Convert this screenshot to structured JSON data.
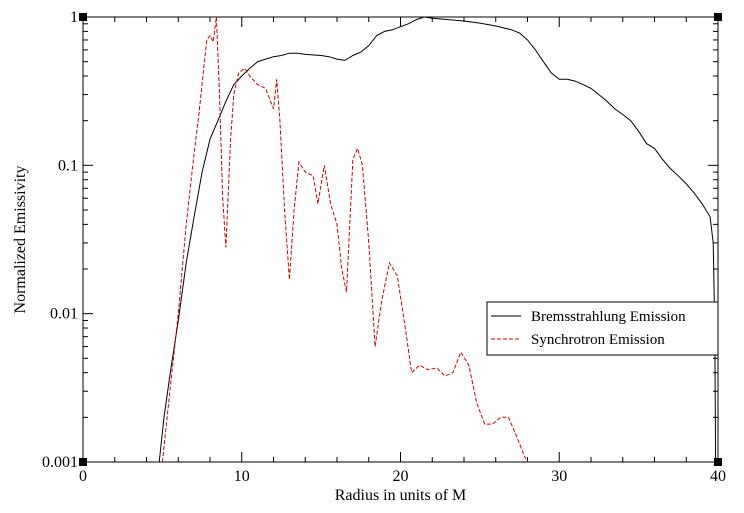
{
  "chart_data": {
    "type": "line",
    "title": "",
    "xlabel": "Radius in units of M",
    "ylabel": "Normalized Emissivity",
    "xlim": [
      0,
      40
    ],
    "ylim": [
      0.001,
      1
    ],
    "yscale": "log",
    "grid": false,
    "legend_placement": "right",
    "x_ticks": [
      {
        "value": 0,
        "label": "0"
      },
      {
        "value": 10,
        "label": "10"
      },
      {
        "value": 20,
        "label": "20"
      },
      {
        "value": 30,
        "label": "30"
      },
      {
        "value": 40,
        "label": "40"
      }
    ],
    "y_ticks": [
      {
        "value": 0.001,
        "label": "0.001"
      },
      {
        "value": 0.01,
        "label": "0.01"
      },
      {
        "value": 0.1,
        "label": "0.1"
      },
      {
        "value": 1,
        "label": "1"
      }
    ],
    "series": [
      {
        "name": "Bremsstrahlung Emission",
        "color": "#000000",
        "dash": "solid",
        "points": [
          [
            4.8,
            0.001
          ],
          [
            5.1,
            0.002
          ],
          [
            5.5,
            0.004
          ],
          [
            6.0,
            0.009
          ],
          [
            6.5,
            0.022
          ],
          [
            7.0,
            0.045
          ],
          [
            7.5,
            0.09
          ],
          [
            8.0,
            0.15
          ],
          [
            8.5,
            0.2
          ],
          [
            9.0,
            0.27
          ],
          [
            9.5,
            0.35
          ],
          [
            10.0,
            0.4
          ],
          [
            10.5,
            0.45
          ],
          [
            11.0,
            0.5
          ],
          [
            11.5,
            0.52
          ],
          [
            12.0,
            0.54
          ],
          [
            12.5,
            0.55
          ],
          [
            13.0,
            0.57
          ],
          [
            13.5,
            0.57
          ],
          [
            14.0,
            0.56
          ],
          [
            15.0,
            0.55
          ],
          [
            15.5,
            0.54
          ],
          [
            16.0,
            0.52
          ],
          [
            16.5,
            0.51
          ],
          [
            17.0,
            0.55
          ],
          [
            17.5,
            0.58
          ],
          [
            18.0,
            0.64
          ],
          [
            18.5,
            0.75
          ],
          [
            19.0,
            0.8
          ],
          [
            19.5,
            0.82
          ],
          [
            20.0,
            0.86
          ],
          [
            20.5,
            0.9
          ],
          [
            21.0,
            0.96
          ],
          [
            21.5,
            1.0
          ],
          [
            22.0,
            0.98
          ],
          [
            23.0,
            0.96
          ],
          [
            24.0,
            0.94
          ],
          [
            25.0,
            0.91
          ],
          [
            26.0,
            0.87
          ],
          [
            27.0,
            0.82
          ],
          [
            27.5,
            0.78
          ],
          [
            28.0,
            0.7
          ],
          [
            28.5,
            0.6
          ],
          [
            29.0,
            0.5
          ],
          [
            29.5,
            0.42
          ],
          [
            30.0,
            0.38
          ],
          [
            30.5,
            0.38
          ],
          [
            31.0,
            0.37
          ],
          [
            31.5,
            0.35
          ],
          [
            32.0,
            0.33
          ],
          [
            32.5,
            0.3
          ],
          [
            33.0,
            0.27
          ],
          [
            33.5,
            0.24
          ],
          [
            34.0,
            0.22
          ],
          [
            34.5,
            0.2
          ],
          [
            35.0,
            0.17
          ],
          [
            35.5,
            0.14
          ],
          [
            36.0,
            0.13
          ],
          [
            36.5,
            0.11
          ],
          [
            37.0,
            0.095
          ],
          [
            37.5,
            0.085
          ],
          [
            38.0,
            0.075
          ],
          [
            38.5,
            0.065
          ],
          [
            39.0,
            0.055
          ],
          [
            39.5,
            0.045
          ],
          [
            39.7,
            0.03
          ],
          [
            39.8,
            0.008
          ],
          [
            39.85,
            0.001
          ]
        ]
      },
      {
        "name": "Synchrotron Emission",
        "color": "#cc0000",
        "dash": "dashed",
        "points": [
          [
            5.0,
            0.001
          ],
          [
            5.3,
            0.002
          ],
          [
            5.6,
            0.004
          ],
          [
            6.0,
            0.01
          ],
          [
            6.5,
            0.04
          ],
          [
            7.0,
            0.12
          ],
          [
            7.3,
            0.22
          ],
          [
            7.6,
            0.45
          ],
          [
            7.8,
            0.7
          ],
          [
            8.0,
            0.75
          ],
          [
            8.2,
            0.68
          ],
          [
            8.4,
            1.0
          ],
          [
            8.6,
            0.3
          ],
          [
            8.8,
            0.06
          ],
          [
            9.0,
            0.028
          ],
          [
            9.3,
            0.15
          ],
          [
            9.5,
            0.3
          ],
          [
            9.8,
            0.42
          ],
          [
            10.2,
            0.45
          ],
          [
            10.5,
            0.4
          ],
          [
            11.0,
            0.35
          ],
          [
            11.5,
            0.33
          ],
          [
            12.0,
            0.24
          ],
          [
            12.2,
            0.38
          ],
          [
            12.4,
            0.2
          ],
          [
            12.7,
            0.05
          ],
          [
            13.0,
            0.017
          ],
          [
            13.3,
            0.05
          ],
          [
            13.6,
            0.105
          ],
          [
            14.0,
            0.09
          ],
          [
            14.5,
            0.085
          ],
          [
            14.8,
            0.055
          ],
          [
            15.2,
            0.1
          ],
          [
            15.6,
            0.055
          ],
          [
            16.0,
            0.04
          ],
          [
            16.3,
            0.02
          ],
          [
            16.6,
            0.014
          ],
          [
            17.0,
            0.11
          ],
          [
            17.3,
            0.13
          ],
          [
            17.6,
            0.1
          ],
          [
            18.0,
            0.03
          ],
          [
            18.4,
            0.006
          ],
          [
            18.8,
            0.012
          ],
          [
            19.3,
            0.022
          ],
          [
            19.8,
            0.018
          ],
          [
            20.3,
            0.008
          ],
          [
            20.7,
            0.004
          ],
          [
            21.2,
            0.0045
          ],
          [
            21.7,
            0.0042
          ],
          [
            22.3,
            0.0043
          ],
          [
            22.8,
            0.0038
          ],
          [
            23.3,
            0.004
          ],
          [
            23.8,
            0.0055
          ],
          [
            24.3,
            0.0045
          ],
          [
            24.8,
            0.0025
          ],
          [
            25.3,
            0.0018
          ],
          [
            25.8,
            0.0018
          ],
          [
            26.3,
            0.002
          ],
          [
            26.8,
            0.002
          ],
          [
            27.3,
            0.0015
          ],
          [
            27.8,
            0.0011
          ],
          [
            28.0,
            0.001
          ]
        ]
      }
    ]
  }
}
